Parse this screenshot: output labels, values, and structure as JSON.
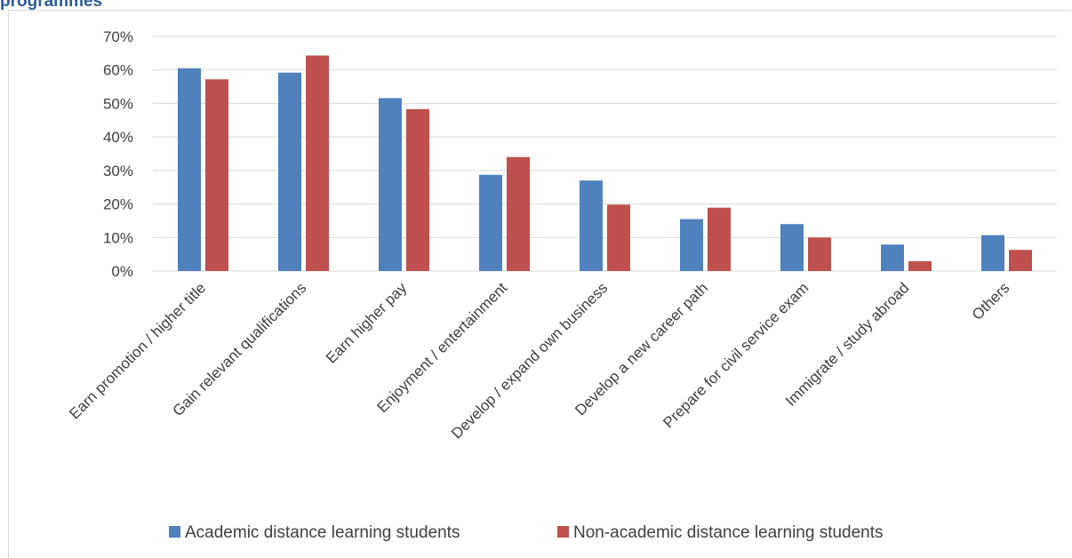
{
  "heading": "programmes",
  "chart_data": {
    "type": "bar",
    "categories": [
      "Earn promotion / higher title",
      "Gain relevant qualifications",
      "Earn higher pay",
      "Enjoyment / entertainment",
      "Develop / expand own business",
      "Develop a new career path",
      "Prepare for civil service exam",
      "Immigrate / study abroad",
      "Others"
    ],
    "series": [
      {
        "name": "Academic distance learning students",
        "color": "#4f81bd",
        "values": [
          60.5,
          59.2,
          51.6,
          28.7,
          27.0,
          15.5,
          14.0,
          7.9,
          10.7
        ]
      },
      {
        "name": "Non-academic distance learning students",
        "color": "#c0504d",
        "values": [
          57.2,
          64.3,
          48.3,
          34.0,
          19.8,
          18.9,
          10.0,
          2.9,
          6.3
        ]
      }
    ],
    "ylim": [
      0,
      70
    ],
    "yticks": [
      "0%",
      "10%",
      "20%",
      "30%",
      "40%",
      "50%",
      "60%",
      "70%"
    ],
    "ytick_values": [
      0,
      10,
      20,
      30,
      40,
      50,
      60,
      70
    ],
    "grid": true,
    "legend_position": "bottom"
  }
}
